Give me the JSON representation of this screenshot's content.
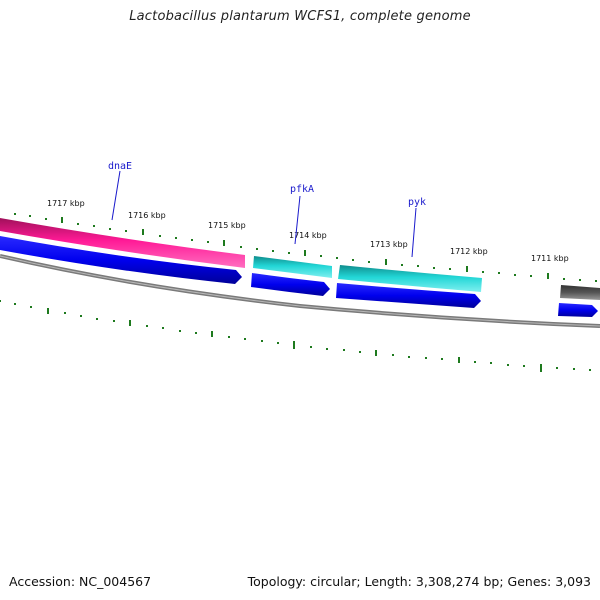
{
  "title": "Lactobacillus plantarum WCFS1, complete genome",
  "footer": {
    "accession": "Accession: NC_004567",
    "summary": "Topology: circular; Length: 3,308,274 bp; Genes: 3,093"
  },
  "scale_labels": [
    "1717 kbp",
    "1716 kbp",
    "1715 kbp",
    "1714 kbp",
    "1713 kbp",
    "1712 kbp",
    "1711 kbp"
  ],
  "gene_labels": [
    "dnaE",
    "pfkA",
    "pyk"
  ],
  "colors": {
    "tick_green": "#1e7a1e",
    "backbone_gray": "#7a7a7a",
    "gene_magenta": "#ff1493",
    "gene_cyan": "#20d0d0",
    "gene_blue": "#0000ee",
    "gene_gray": "#555555",
    "label_blue": "#1a1acc"
  }
}
